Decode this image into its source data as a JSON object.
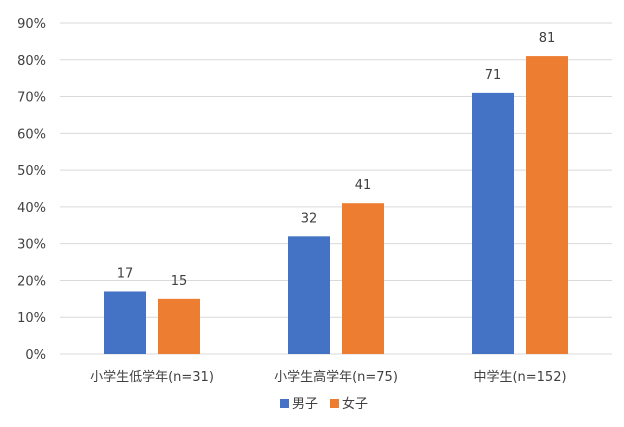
{
  "chart_data": {
    "type": "bar",
    "title": "",
    "xlabel": "",
    "ylabel": "",
    "ylim": [
      0,
      90
    ],
    "y_ticks": [
      "0%",
      "10%",
      "20%",
      "30%",
      "40%",
      "50%",
      "60%",
      "70%",
      "80%",
      "90%"
    ],
    "y_tick_values": [
      0,
      10,
      20,
      30,
      40,
      50,
      60,
      70,
      80,
      90
    ],
    "categories": [
      "小学生低学年(n=31)",
      "小学生高学年(n=75)",
      "中学生(n=152)"
    ],
    "series": [
      {
        "name": "男子",
        "color": "#4472c4",
        "values": [
          17,
          32,
          71
        ]
      },
      {
        "name": "女子",
        "color": "#ed7d31",
        "values": [
          15,
          41,
          81
        ]
      }
    ],
    "grid": true,
    "legend_position": "bottom"
  }
}
